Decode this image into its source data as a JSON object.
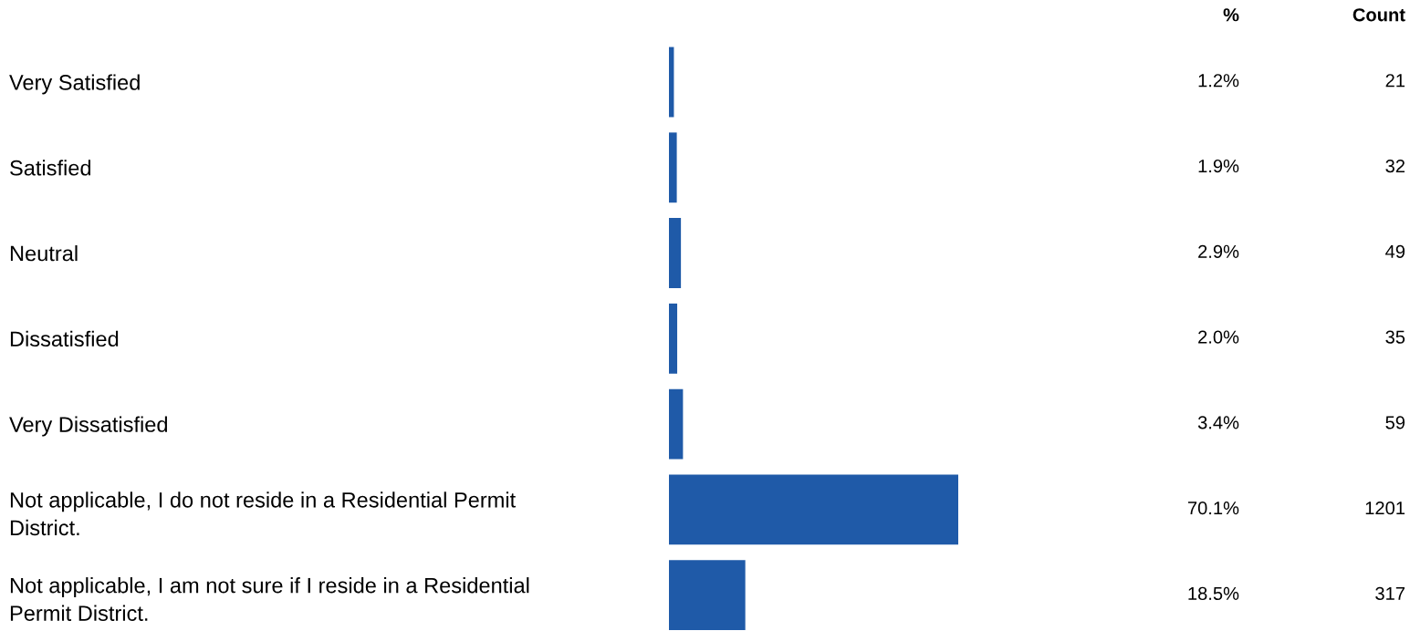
{
  "chart_data": [
    {
      "type": "bar",
      "orientation": "horizontal",
      "categories": [
        "Very Satisfied",
        "Satisfied",
        "Neutral",
        "Dissatisfied",
        "Very Dissatisfied",
        "Not applicable, I do not reside in a Residential Permit District.",
        "Not applicable, I am not sure if I reside in a Residential Permit District."
      ],
      "values": [
        1.2,
        1.9,
        2.9,
        2.0,
        3.4,
        70.1,
        18.5
      ],
      "value_labels": [
        "1.2%",
        "1.9%",
        "2.9%",
        "2.0%",
        "3.4%",
        "70.1%",
        "18.5%"
      ],
      "color": "#1f5aa8",
      "tick_labels": "y",
      "grid": false,
      "legend": false,
      "annotations": [
        "%"
      ]
    },
    {
      "type": "other",
      "title": "Count",
      "values": [
        21,
        32,
        49,
        35,
        59,
        1201,
        317
      ],
      "data_labels": true
    }
  ]
}
